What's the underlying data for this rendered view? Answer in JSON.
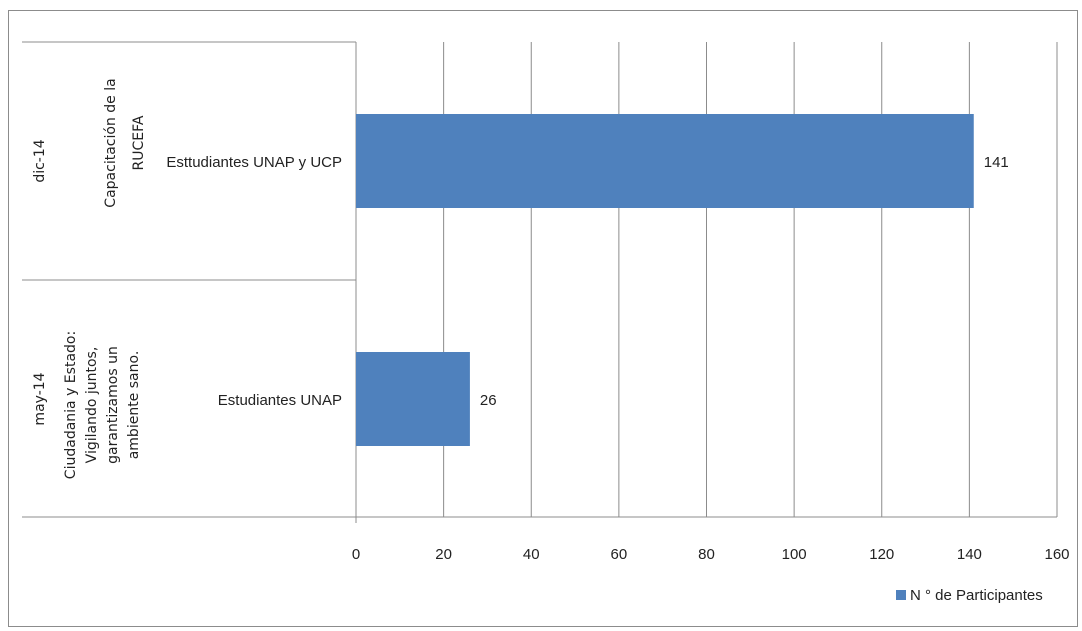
{
  "chart_data": {
    "type": "bar",
    "orientation": "horizontal",
    "title": "",
    "xlabel": "",
    "ylabel": "",
    "xlim": [
      0,
      160
    ],
    "xticks": [
      0,
      20,
      40,
      60,
      80,
      100,
      120,
      140,
      160
    ],
    "grid": true,
    "legend_position": "bottom-right",
    "groups": [
      {
        "date": "dic-14",
        "event_lines": [
          "Capacitación de la",
          "RUCEFA"
        ]
      },
      {
        "date": "may-14",
        "event_lines": [
          "Ciudadania  y Estado:",
          "Vigilando juntos,",
          "garantizamos un",
          "ambiente sano."
        ]
      }
    ],
    "categories": [
      "Esttudiantes UNAP y UCP",
      "Estudiantes UNAP"
    ],
    "series": [
      {
        "name": "N ° de Participantes",
        "color": "#4f81bd",
        "values": [
          141,
          26
        ],
        "labels": [
          "141",
          "26"
        ]
      }
    ]
  }
}
